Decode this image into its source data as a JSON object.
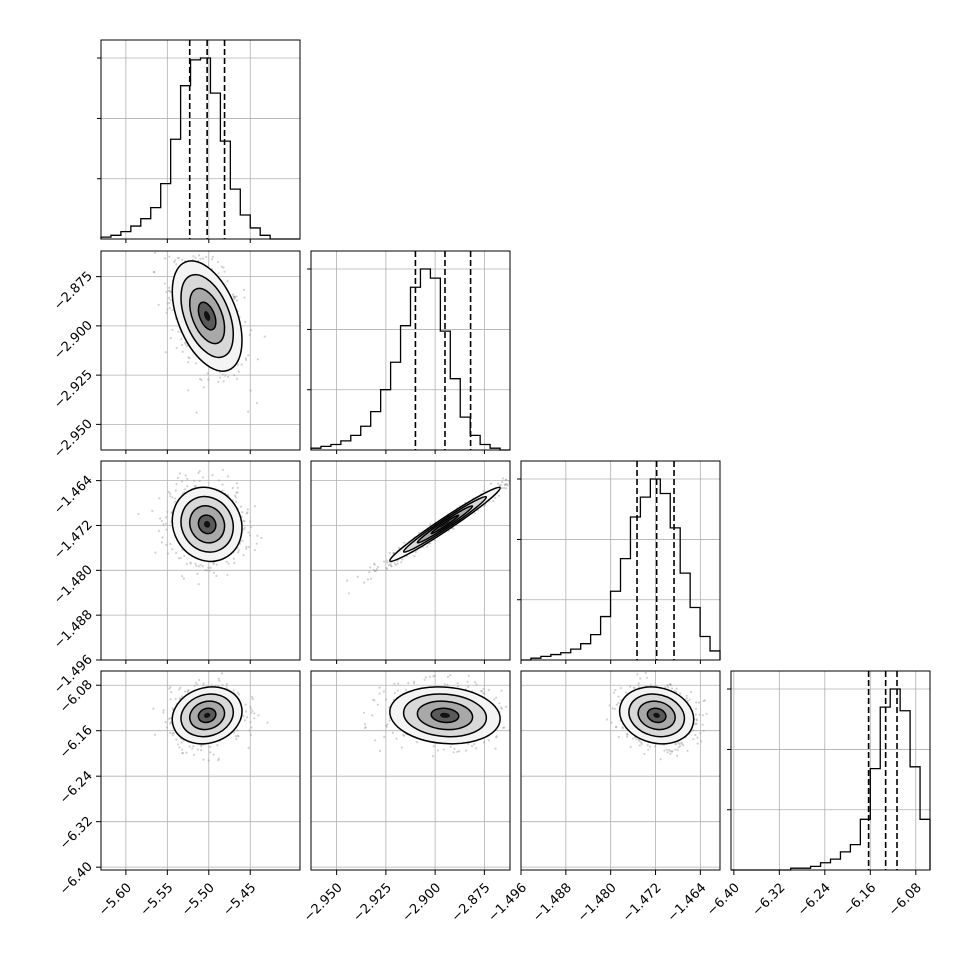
{
  "chart_data": {
    "type": "corner",
    "grid": true,
    "parameters": [
      {
        "range": [
          -5.63,
          -5.39
        ],
        "median": -5.502,
        "q16": -5.523,
        "q84": -5.481,
        "ticks": [
          -5.6,
          -5.55,
          -5.5,
          -5.45
        ],
        "tick_labels": [
          "−5.60",
          "−5.55",
          "−5.50",
          "−5.45"
        ]
      },
      {
        "range": [
          -2.963,
          -2.862
        ],
        "median": -2.895,
        "q16": -2.91,
        "q84": -2.882,
        "ticks": [
          -2.95,
          -2.925,
          -2.9,
          -2.875
        ],
        "tick_labels": [
          "−2.950",
          "−2.925",
          "−2.900",
          "−2.875"
        ]
      },
      {
        "range": [
          -1.496,
          -1.4605
        ],
        "median": -1.4718,
        "q16": -1.4753,
        "q84": -1.4687,
        "ticks": [
          -1.496,
          -1.488,
          -1.48,
          -1.472,
          -1.464
        ],
        "tick_labels": [
          "−1.496",
          "−1.488",
          "−1.480",
          "−1.472",
          "−1.464"
        ]
      },
      {
        "range": [
          -6.405,
          -6.055
        ],
        "median": -6.133,
        "q16": -6.163,
        "q84": -6.113,
        "ticks": [
          -6.4,
          -6.32,
          -6.24,
          -6.16,
          -6.08
        ],
        "tick_labels": [
          "−6.40",
          "−6.32",
          "−6.24",
          "−6.16",
          "−6.08"
        ]
      }
    ],
    "histograms": [
      {
        "name": "",
        "counts": [
          1,
          2,
          4,
          7,
          11,
          17,
          30,
          54,
          83,
          97,
          98,
          79,
          53,
          27,
          13,
          6,
          2,
          0,
          0,
          0
        ]
      },
      {
        "name": "",
        "counts": [
          1,
          2,
          3,
          5,
          8,
          13,
          21,
          33,
          48,
          68,
          89,
          99,
          94,
          65,
          39,
          18,
          8,
          3,
          1,
          0
        ]
      },
      {
        "name": "",
        "counts": [
          0,
          1,
          2,
          3,
          4,
          6,
          9,
          14,
          24,
          38,
          56,
          79,
          90,
          100,
          92,
          73,
          48,
          29,
          13,
          5
        ]
      },
      {
        "name": "",
        "counts": [
          0,
          0,
          0,
          0,
          0,
          0,
          1,
          1,
          2,
          4,
          6,
          10,
          14,
          28,
          56,
          90,
          100,
          88,
          57,
          28
        ]
      }
    ],
    "correlations": [
      {
        "pair": [
          1,
          0
        ],
        "rho": -0.45
      },
      {
        "pair": [
          2,
          0
        ],
        "rho": -0.1
      },
      {
        "pair": [
          2,
          1
        ],
        "rho": 0.98
      },
      {
        "pair": [
          3,
          0
        ],
        "rho": 0.15
      },
      {
        "pair": [
          3,
          1
        ],
        "rho": -0.12
      },
      {
        "pair": [
          3,
          2
        ],
        "rho": -0.15
      }
    ],
    "quantile_lines": [
      "16%",
      "50%",
      "84%"
    ]
  }
}
